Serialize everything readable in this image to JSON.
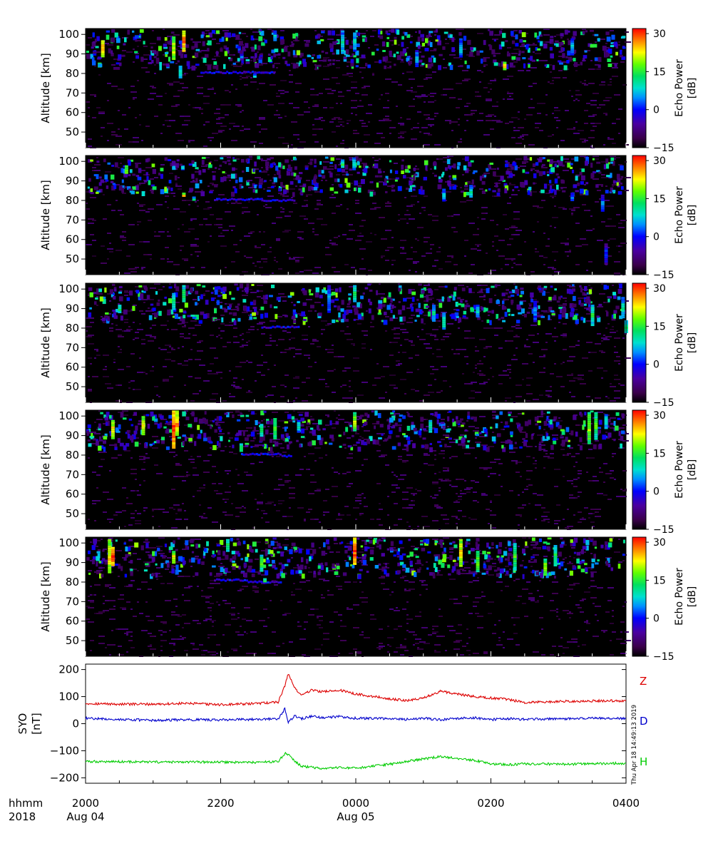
{
  "chart_data": [
    {
      "type": "heatmap",
      "panel": 1,
      "ylabel": "Altitude [km]",
      "yticks": [
        50,
        60,
        70,
        80,
        90,
        100
      ],
      "ylim": [
        42,
        103
      ],
      "xlim_hours": [
        20,
        28
      ],
      "colorbar": {
        "label_line1": "Echo Power",
        "label_line2": "[dB]",
        "range": [
          -15,
          32
        ],
        "ticks": [
          30,
          15,
          0,
          -15
        ]
      },
      "seed": 11,
      "layer_segments": [
        [
          21.7,
          22.8,
          80.5
        ]
      ],
      "features": [
        [
          20.25,
          89,
          97,
          28
        ],
        [
          21.3,
          87,
          99,
          22
        ],
        [
          21.45,
          92,
          102,
          28
        ],
        [
          21.4,
          78,
          84,
          12
        ],
        [
          23.8,
          90,
          102,
          10
        ],
        [
          22.8,
          97,
          102,
          8
        ],
        [
          23.98,
          92,
          101,
          10
        ],
        [
          24.9,
          84,
          92,
          6
        ],
        [
          25.55,
          89,
          98,
          8
        ],
        [
          26.2,
          82,
          86,
          24
        ],
        [
          27.2,
          90,
          98,
          8
        ],
        [
          22.5,
          78,
          80,
          10
        ]
      ]
    },
    {
      "type": "heatmap",
      "panel": 2,
      "ylabel": "Altitude [km]",
      "yticks": [
        50,
        60,
        70,
        80,
        90,
        100
      ],
      "ylim": [
        42,
        103
      ],
      "xlim_hours": [
        20,
        28
      ],
      "colorbar": {
        "label_line1": "Echo Power",
        "label_line2": "[dB]",
        "range": [
          -15,
          32
        ],
        "ticks": [
          30,
          15,
          0,
          -15
        ]
      },
      "seed": 23,
      "layer_segments": [
        [
          21.9,
          22.6,
          80.5
        ],
        [
          22.6,
          23.1,
          80
        ]
      ],
      "features": [
        [
          20.6,
          94,
          98,
          20
        ],
        [
          21.45,
          82,
          84,
          26
        ],
        [
          21.6,
          80,
          82,
          12
        ],
        [
          23.8,
          97,
          101,
          14
        ],
        [
          23.97,
          96,
          102,
          10
        ],
        [
          25.3,
          80,
          86,
          8
        ],
        [
          25.7,
          82,
          88,
          10
        ],
        [
          27.2,
          80,
          84,
          4
        ],
        [
          27.65,
          75,
          83,
          4
        ],
        [
          27.7,
          48,
          58,
          2
        ]
      ]
    },
    {
      "type": "heatmap",
      "panel": 3,
      "ylabel": "Altitude [km]",
      "yticks": [
        50,
        60,
        70,
        80,
        90,
        100
      ],
      "ylim": [
        42,
        103
      ],
      "xlim_hours": [
        20,
        28
      ],
      "colorbar": {
        "label_line1": "Echo Power",
        "label_line2": "[dB]",
        "range": [
          -15,
          32
        ],
        "ticks": [
          30,
          15,
          0,
          -15
        ]
      },
      "seed": 37,
      "layer_segments": [
        [
          22.6,
          23.15,
          80.5
        ]
      ],
      "features": [
        [
          20.5,
          88,
          92,
          14
        ],
        [
          21.3,
          90,
          98,
          12
        ],
        [
          21.45,
          94,
          102,
          14
        ],
        [
          23.6,
          88,
          102,
          6
        ],
        [
          23.98,
          94,
          102,
          14
        ],
        [
          25.15,
          84,
          92,
          10
        ],
        [
          25.3,
          80,
          88,
          12
        ],
        [
          25.8,
          86,
          92,
          8
        ],
        [
          26.65,
          84,
          94,
          6
        ],
        [
          27.5,
          82,
          92,
          14
        ],
        [
          27.95,
          86,
          96,
          10
        ],
        [
          28.0,
          78,
          84,
          12
        ]
      ]
    },
    {
      "type": "heatmap",
      "panel": 4,
      "ylabel": "Altitude [km]",
      "yticks": [
        50,
        60,
        70,
        80,
        90,
        100
      ],
      "ylim": [
        42,
        103
      ],
      "xlim_hours": [
        20,
        28
      ],
      "colorbar": {
        "label_line1": "Echo Power",
        "label_line2": "[dB]",
        "range": [
          -15,
          32
        ],
        "ticks": [
          30,
          15,
          0,
          -15
        ]
      },
      "seed": 41,
      "layer_segments": [
        [
          22.3,
          22.9,
          80.5
        ],
        [
          22.9,
          23.05,
          79.5
        ]
      ],
      "features": [
        [
          20.4,
          89,
          98,
          24
        ],
        [
          21.3,
          84,
          103,
          31
        ],
        [
          21.35,
          90,
          103,
          26
        ],
        [
          20.85,
          91,
          100,
          22
        ],
        [
          22.6,
          90,
          96,
          14
        ],
        [
          22.8,
          89,
          99,
          18
        ],
        [
          23.15,
          92,
          98,
          10
        ],
        [
          23.98,
          93,
          102,
          20
        ],
        [
          25.1,
          92,
          98,
          12
        ],
        [
          27.45,
          86,
          102,
          20
        ],
        [
          27.55,
          88,
          102,
          16
        ],
        [
          27.7,
          94,
          101,
          10
        ],
        [
          22.3,
          82,
          86,
          16
        ]
      ]
    },
    {
      "type": "heatmap",
      "panel": 5,
      "ylabel": "Altitude [km]",
      "yticks": [
        50,
        60,
        70,
        80,
        90,
        100
      ],
      "ylim": [
        42,
        103
      ],
      "xlim_hours": [
        20,
        28
      ],
      "colorbar": {
        "label_line1": "Echo Power",
        "label_line2": "[dB]",
        "range": [
          -15,
          32
        ],
        "ticks": [
          30,
          15,
          0,
          -15
        ]
      },
      "seed": 53,
      "layer_segments": [
        [
          21.9,
          22.4,
          81
        ],
        [
          22.4,
          22.9,
          80
        ]
      ],
      "features": [
        [
          20.35,
          85,
          102,
          24
        ],
        [
          20.4,
          89,
          98,
          30
        ],
        [
          21.3,
          90,
          96,
          24
        ],
        [
          22.1,
          96,
          102,
          14
        ],
        [
          22.6,
          86,
          94,
          16
        ],
        [
          23.98,
          89,
          103,
          30
        ],
        [
          25.55,
          88,
          102,
          24
        ],
        [
          25.8,
          86,
          96,
          18
        ],
        [
          26.35,
          86,
          100,
          16
        ],
        [
          26.95,
          89,
          99,
          14
        ],
        [
          26.8,
          84,
          92,
          20
        ],
        [
          22.65,
          80,
          82,
          14
        ]
      ]
    },
    {
      "type": "line",
      "panel": 6,
      "ylabel_line1": "SYO",
      "ylabel_line2": "[nT]",
      "yticks": [
        200,
        100,
        0,
        -100,
        -200
      ],
      "ylim": [
        -220,
        220
      ],
      "x_hours": [
        20.0,
        20.5,
        21.0,
        21.5,
        22.0,
        22.5,
        22.85,
        22.95,
        23.0,
        23.1,
        23.2,
        23.35,
        23.5,
        23.75,
        24.0,
        24.5,
        24.75,
        25.0,
        25.25,
        25.5,
        25.75,
        26.0,
        26.25,
        26.5,
        27.0,
        27.5,
        28.0
      ],
      "series": [
        {
          "name": "Z",
          "color": "#dd0000",
          "values": [
            75,
            72,
            72,
            75,
            70,
            74,
            80,
            140,
            185,
            130,
            105,
            125,
            118,
            124,
            110,
            92,
            85,
            95,
            120,
            110,
            100,
            95,
            90,
            78,
            82,
            84,
            85
          ]
        },
        {
          "name": "D",
          "color": "#0000cc",
          "values": [
            20,
            16,
            12,
            15,
            14,
            16,
            18,
            55,
            5,
            30,
            18,
            28,
            22,
            26,
            20,
            18,
            16,
            20,
            14,
            20,
            22,
            15,
            18,
            16,
            18,
            20,
            20
          ]
        },
        {
          "name": "H",
          "color": "#00cc00",
          "values": [
            -140,
            -140,
            -142,
            -142,
            -142,
            -143,
            -140,
            -110,
            -112,
            -140,
            -158,
            -160,
            -168,
            -162,
            -165,
            -150,
            -140,
            -130,
            -122,
            -128,
            -135,
            -148,
            -152,
            -148,
            -150,
            -148,
            -146
          ]
        }
      ]
    }
  ],
  "timestamp": "Thu Apr 18 14:49:13 2019",
  "x_axis": {
    "row_label_1": "hhmm",
    "row_label_2": "2018",
    "ticks": [
      {
        "label": "2000",
        "hour": 20,
        "date": "Aug 04"
      },
      {
        "label": "2200",
        "hour": 22,
        "date": ""
      },
      {
        "label": "0000",
        "hour": 24,
        "date": "Aug 05"
      },
      {
        "label": "0200",
        "hour": 26,
        "date": ""
      },
      {
        "label": "0400",
        "hour": 28,
        "date": ""
      }
    ]
  }
}
